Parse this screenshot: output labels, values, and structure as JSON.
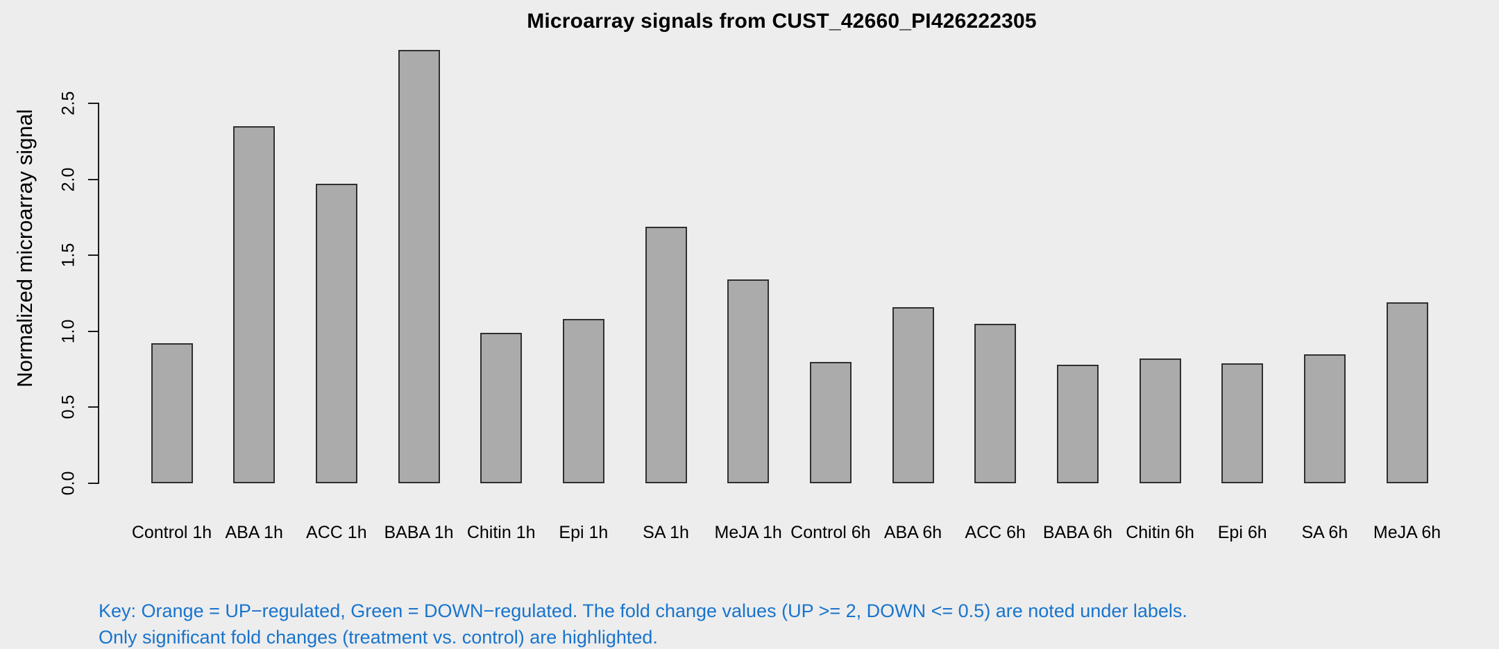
{
  "background": "#EDEDED",
  "chart_data": {
    "type": "bar",
    "title": "Microarray signals from CUST_42660_PI426222305",
    "xlabel": "",
    "ylabel": "Normalized microarray signal",
    "categories": [
      "Control 1h",
      "ABA 1h",
      "ACC 1h",
      "BABA 1h",
      "Chitin 1h",
      "Epi 1h",
      "SA 1h",
      "MeJA 1h",
      "Control 6h",
      "ABA 6h",
      "ACC 6h",
      "BABA 6h",
      "Chitin 6h",
      "Epi 6h",
      "SA 6h",
      "MeJA 6h"
    ],
    "values": [
      0.92,
      2.35,
      1.97,
      2.85,
      0.99,
      1.08,
      1.69,
      1.34,
      0.8,
      1.16,
      1.05,
      0.78,
      0.82,
      0.79,
      0.85,
      1.19
    ],
    "ylim": [
      0,
      2.9
    ],
    "yticks": [
      0,
      0.5,
      1,
      1.5,
      2,
      2.5
    ],
    "ytick_labels": [
      "0.0",
      "0.5",
      "1.0",
      "1.5",
      "2.0",
      "2.5"
    ],
    "grid": false,
    "legend": "none",
    "bar_fill_color": "#ABABAB",
    "bar_border_color": "#2F2F2F"
  },
  "footnote": {
    "line1": "Key: Orange = UP−regulated, Green = DOWN−regulated. The fold change values (UP >= 2, DOWN <= 0.5) are noted under labels.",
    "line2": "Only significant fold changes (treatment vs. control) are highlighted.",
    "color": "#1874CD"
  }
}
